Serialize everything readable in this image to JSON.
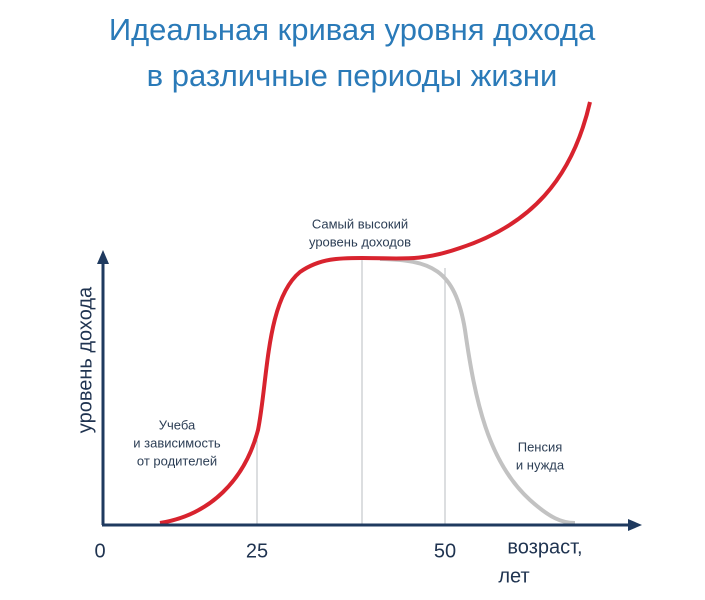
{
  "header": {
    "title_lines": [
      "Идеальная кривая уровня дохода",
      "в различные периоды жизни"
    ]
  },
  "axes": {
    "y_label": "уровень дохода",
    "x_label_lines": [
      "возраст,",
      "лет"
    ],
    "x_tick_labels": [
      "0",
      "25",
      "50"
    ]
  },
  "annotations": [
    {
      "lines": [
        "Учеба",
        "и зависимость",
        "от родителей"
      ]
    },
    {
      "lines": [
        "Самый высокий",
        "уровень доходов"
      ]
    },
    {
      "lines": [
        "Пенсия",
        "и нужда"
      ]
    }
  ]
}
